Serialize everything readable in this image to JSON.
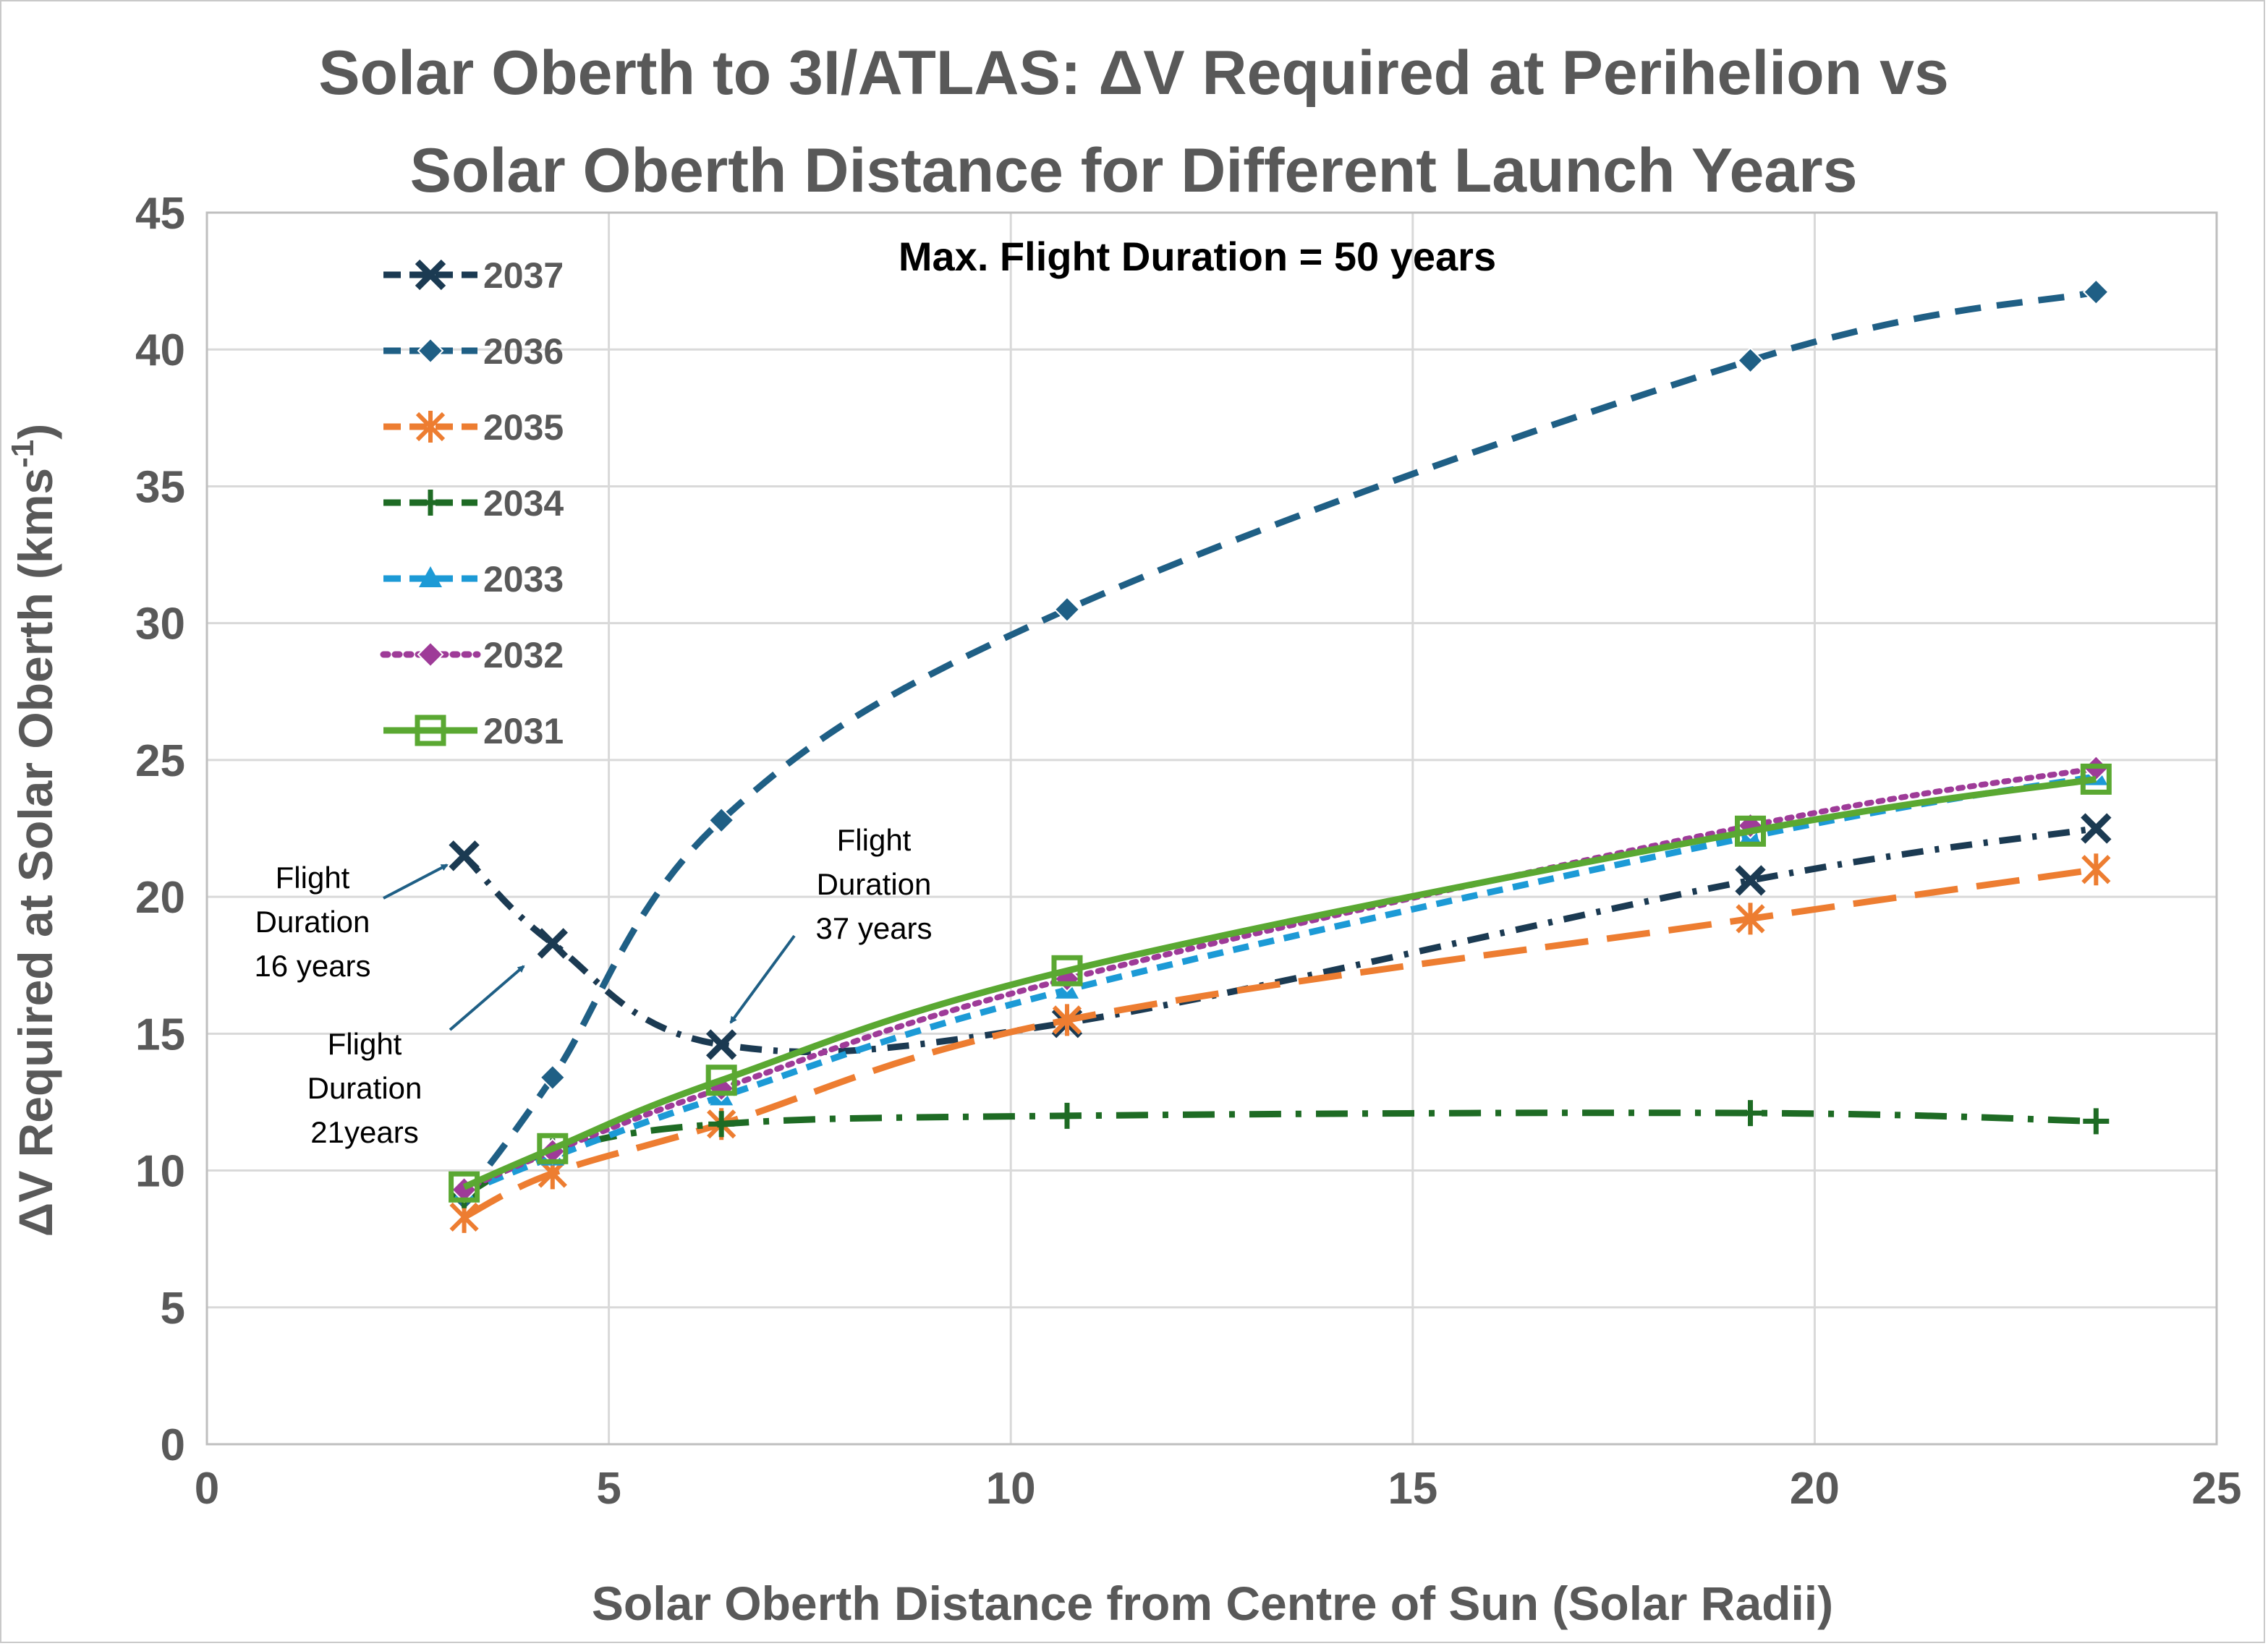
{
  "chart_data": {
    "type": "line",
    "title": [
      "Solar Oberth to 3I/ATLAS: ΔV Required at Perihelion vs",
      "Solar Oberth Distance for Different Launch Years"
    ],
    "subtitle": "Max. Flight Duration = 50 years",
    "xlabel": "Solar Oberth Distance from Centre of Sun (Solar Radii)",
    "ylabel_main": "ΔV Required at Solar Oberth (kms",
    "ylabel_sup": "-1",
    "ylabel_end": ")",
    "xlim": [
      0,
      25
    ],
    "ylim": [
      0,
      45
    ],
    "xticks": [
      0,
      5,
      10,
      15,
      20,
      25
    ],
    "yticks": [
      0,
      5,
      10,
      15,
      20,
      25,
      30,
      35,
      40,
      45
    ],
    "grid": true,
    "legend_position": "top-left",
    "series": [
      {
        "name": "2037",
        "color": "#1b3a52",
        "marker": "x",
        "dash": "dashdot",
        "points": [
          [
            3.2,
            21.5
          ],
          [
            4.3,
            18.3
          ],
          [
            6.4,
            14.6
          ],
          [
            10.7,
            15.4
          ],
          [
            19.2,
            20.6
          ],
          [
            23.5,
            22.5
          ]
        ]
      },
      {
        "name": "2036",
        "color": "#1f5f85",
        "marker": "diamond",
        "dash": "dash",
        "points": [
          [
            3.2,
            9.0
          ],
          [
            4.3,
            13.4
          ],
          [
            6.4,
            22.8
          ],
          [
            10.7,
            30.5
          ],
          [
            19.2,
            39.6
          ],
          [
            23.5,
            42.1
          ]
        ]
      },
      {
        "name": "2035",
        "color": "#ed7d31",
        "marker": "star",
        "dash": "longdash",
        "points": [
          [
            3.2,
            8.3
          ],
          [
            4.3,
            9.9
          ],
          [
            6.4,
            11.7
          ],
          [
            10.7,
            15.5
          ],
          [
            19.2,
            19.2
          ],
          [
            23.5,
            21.0
          ]
        ]
      },
      {
        "name": "2034",
        "color": "#1e6b24",
        "marker": "plus",
        "dash": "longdashdot",
        "points": [
          [
            3.2,
            9.1
          ],
          [
            4.3,
            10.7
          ],
          [
            6.4,
            11.7
          ],
          [
            10.7,
            12.0
          ],
          [
            19.2,
            12.1
          ],
          [
            23.5,
            11.8
          ]
        ]
      },
      {
        "name": "2033",
        "color": "#1c9ad6",
        "marker": "triangle",
        "dash": "shortdash",
        "points": [
          [
            3.2,
            9.2
          ],
          [
            4.3,
            10.5
          ],
          [
            6.4,
            12.7
          ],
          [
            10.7,
            16.6
          ],
          [
            19.2,
            22.2
          ],
          [
            23.5,
            24.4
          ]
        ]
      },
      {
        "name": "2032",
        "color": "#9e3b98",
        "marker": "diamond",
        "dash": "dot",
        "points": [
          [
            3.2,
            9.3
          ],
          [
            4.3,
            10.7
          ],
          [
            6.4,
            13.0
          ],
          [
            10.7,
            17.0
          ],
          [
            19.2,
            22.6
          ],
          [
            23.5,
            24.7
          ]
        ]
      },
      {
        "name": "2031",
        "color": "#5aa832",
        "marker": "square",
        "dash": "solid",
        "points": [
          [
            3.2,
            9.4
          ],
          [
            4.3,
            10.8
          ],
          [
            6.4,
            13.3
          ],
          [
            10.7,
            17.3
          ],
          [
            19.2,
            22.4
          ],
          [
            23.5,
            24.3
          ]
        ]
      }
    ],
    "annotations": [
      {
        "lines": [
          "Flight",
          "Duration",
          "16 years"
        ],
        "target": [
          3.2,
          21.5
        ]
      },
      {
        "lines": [
          "Flight",
          "Duration",
          "21years"
        ],
        "target": [
          4.3,
          18.3
        ]
      },
      {
        "lines": [
          "Flight",
          "Duration",
          "37 years"
        ],
        "target": [
          6.4,
          14.6
        ]
      }
    ]
  }
}
